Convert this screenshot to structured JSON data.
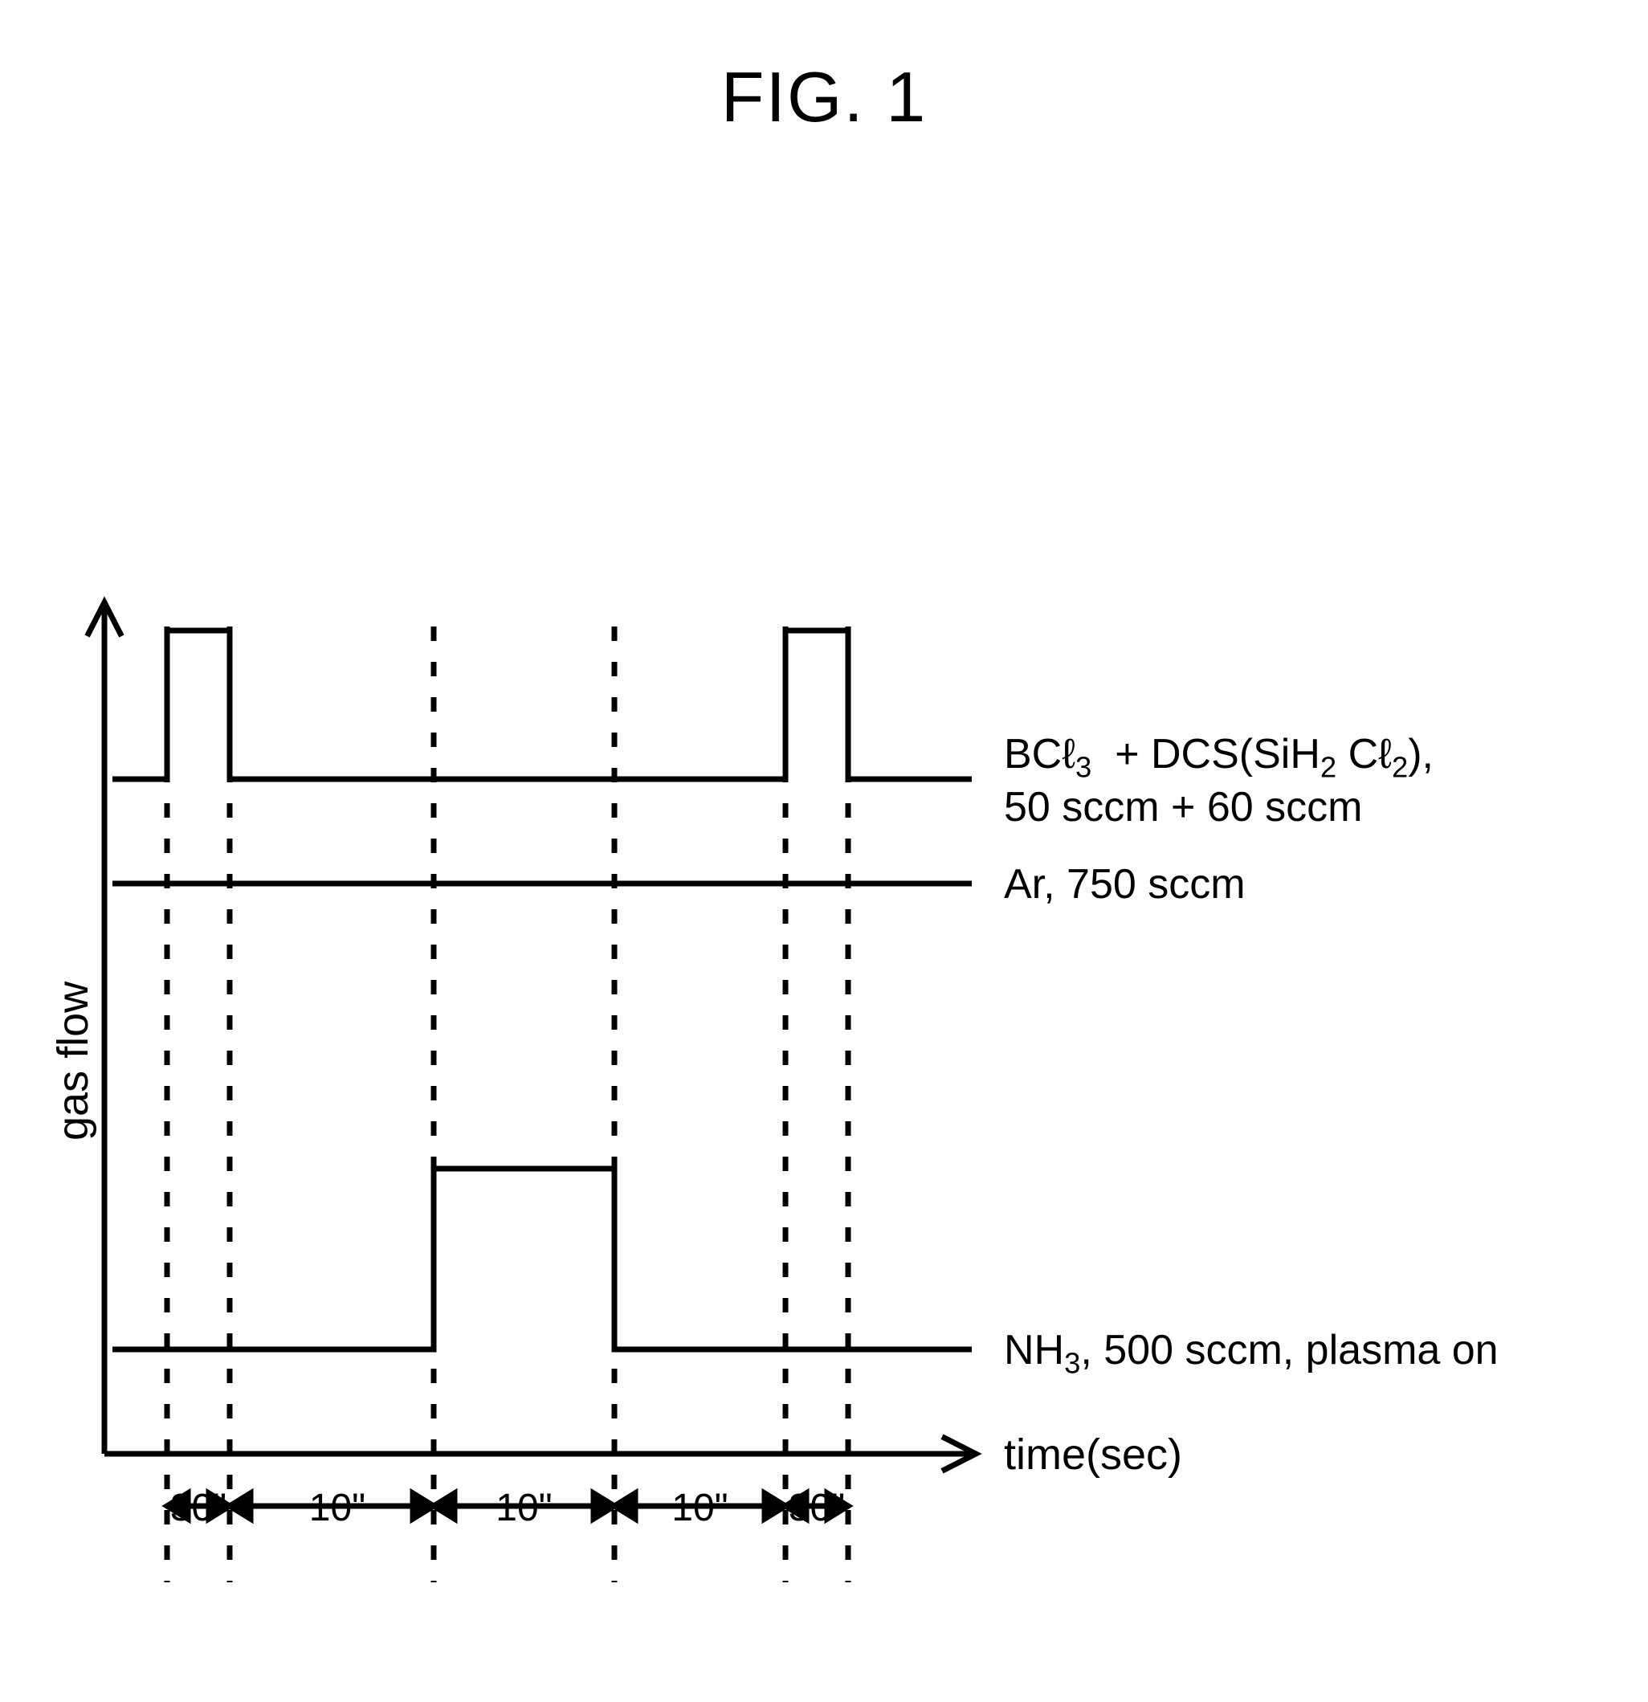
{
  "figure": {
    "title": "FIG. 1",
    "title_fontsize": 88,
    "background_color": "#ffffff",
    "stroke_color": "#000000",
    "stroke_width": 7,
    "dash_pattern": "18 26"
  },
  "axes": {
    "y_label": "gas flow",
    "x_label": "time(sec)",
    "label_fontsize": 54
  },
  "intervals": {
    "labels": [
      "30\"",
      "10\"",
      "10\"",
      "10\"",
      "30\""
    ],
    "fontsize": 48
  },
  "series": {
    "top": {
      "label_html": "BCℓ<sub>3</sub>  + DCS(SiH<sub>2</sub> Cℓ<sub>2</sub>),\n50 sccm + 60 sccm",
      "baseline_y": 290,
      "pulse_height": 185,
      "pulse_starts": [
        108,
        878
      ],
      "pulse_width": 78
    },
    "mid": {
      "label_text": "Ar, 750 sccm",
      "baseline_y": 420
    },
    "bottom": {
      "label_html": "NH<sub>3</sub>, 500 sccm, plasma on",
      "baseline_y": 1000,
      "pulse_height": 225,
      "pulse_start": 440,
      "pulse_width": 225
    }
  },
  "geometry": {
    "origin_x": 30,
    "origin_y": 1130,
    "x_axis_end": 1115,
    "y_axis_top": 70,
    "arrow_size": 30,
    "dashed_x": [
      108,
      186,
      440,
      665,
      878,
      956
    ],
    "dashed_top_y": 100,
    "dashed_bottom_y": 1290
  }
}
